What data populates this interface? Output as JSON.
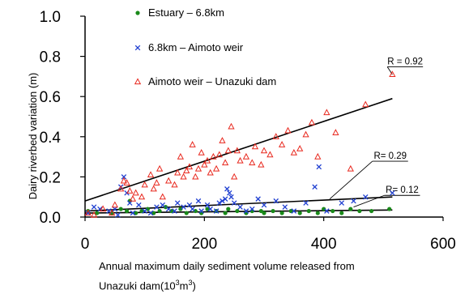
{
  "chart_data": {
    "type": "scatter",
    "title": "",
    "ylabel": "Dairy riverbed variation (m)",
    "xlabel_line1": "Annual maximum daily sediment volume released from",
    "xlabel_line2_base": "Unazuki dam(10",
    "xlabel_line2_sup1": "3",
    "xlabel_line2_mid": "m",
    "xlabel_line2_sup2": "3",
    "xlabel_line2_end": ")",
    "xlim": [
      0,
      600
    ],
    "ylim": [
      0,
      1.0
    ],
    "xticks": [
      "0",
      "200",
      "400",
      "600"
    ],
    "yticks": [
      "0.0",
      "0.2",
      "0.4",
      "0.6",
      "0.8",
      "1.0"
    ],
    "xtick_values": [
      0,
      200,
      400,
      600
    ],
    "ytick_values": [
      0,
      0.2,
      0.4,
      0.6,
      0.8,
      1.0
    ],
    "legend_placement": "top-left",
    "series": [
      {
        "name": "Estuary – 6.8km",
        "marker": "dot",
        "color": "#1a8a1a",
        "points": [
          [
            5,
            0.03
          ],
          [
            20,
            0.02
          ],
          [
            45,
            0.02
          ],
          [
            60,
            0.04
          ],
          [
            70,
            0.03
          ],
          [
            75,
            0.08
          ],
          [
            85,
            0.02
          ],
          [
            95,
            0.03
          ],
          [
            105,
            0.04
          ],
          [
            115,
            0.02
          ],
          [
            125,
            0.03
          ],
          [
            135,
            0.05
          ],
          [
            145,
            0.03
          ],
          [
            160,
            0.04
          ],
          [
            170,
            0.02
          ],
          [
            185,
            0.03
          ],
          [
            195,
            0.02
          ],
          [
            205,
            0.04
          ],
          [
            220,
            0.03
          ],
          [
            235,
            0.02
          ],
          [
            240,
            0.04
          ],
          [
            255,
            0.03
          ],
          [
            270,
            0.02
          ],
          [
            280,
            0.03
          ],
          [
            295,
            0.03
          ],
          [
            300,
            0.02
          ],
          [
            315,
            0.03
          ],
          [
            330,
            0.02
          ],
          [
            345,
            0.03
          ],
          [
            360,
            0.02
          ],
          [
            375,
            0.03
          ],
          [
            390,
            0.02
          ],
          [
            400,
            0.04
          ],
          [
            415,
            0.03
          ],
          [
            430,
            0.02
          ],
          [
            445,
            0.04
          ],
          [
            460,
            0.03
          ],
          [
            480,
            0.03
          ],
          [
            510,
            0.04
          ]
        ]
      },
      {
        "name": "6.8km – Aimoto weir",
        "marker": "x",
        "color": "#1f3fd1",
        "points": [
          [
            5,
            0.02
          ],
          [
            15,
            0.05
          ],
          [
            25,
            0.04
          ],
          [
            40,
            0.03
          ],
          [
            50,
            0.04
          ],
          [
            55,
            0.01
          ],
          [
            60,
            0.15
          ],
          [
            65,
            0.2
          ],
          [
            70,
            0.12
          ],
          [
            75,
            0.07
          ],
          [
            80,
            0.02
          ],
          [
            90,
            0.06
          ],
          [
            100,
            0.03
          ],
          [
            110,
            0.02
          ],
          [
            120,
            0.05
          ],
          [
            130,
            0.06
          ],
          [
            140,
            0.04
          ],
          [
            150,
            0.03
          ],
          [
            155,
            0.07
          ],
          [
            165,
            0.05
          ],
          [
            175,
            0.06
          ],
          [
            180,
            0.04
          ],
          [
            190,
            0.08
          ],
          [
            195,
            0.03
          ],
          [
            205,
            0.06
          ],
          [
            210,
            0.04
          ],
          [
            220,
            0.03
          ],
          [
            225,
            0.07
          ],
          [
            230,
            0.08
          ],
          [
            235,
            0.09
          ],
          [
            238,
            0.14
          ],
          [
            242,
            0.12
          ],
          [
            245,
            0.1
          ],
          [
            250,
            0.07
          ],
          [
            260,
            0.05
          ],
          [
            270,
            0.03
          ],
          [
            280,
            0.04
          ],
          [
            290,
            0.09
          ],
          [
            300,
            0.06
          ],
          [
            320,
            0.08
          ],
          [
            335,
            0.05
          ],
          [
            350,
            0.03
          ],
          [
            370,
            0.07
          ],
          [
            385,
            0.15
          ],
          [
            392,
            0.25
          ],
          [
            405,
            0.03
          ],
          [
            430,
            0.07
          ],
          [
            450,
            0.08
          ],
          [
            470,
            0.1
          ],
          [
            515,
            0.12
          ]
        ]
      },
      {
        "name": "Aimoto weir – Unazuki dam",
        "marker": "triangle",
        "color": "#e8281e",
        "points": [
          [
            5,
            0.02
          ],
          [
            15,
            0.01
          ],
          [
            30,
            0.04
          ],
          [
            45,
            0.02
          ],
          [
            50,
            0.06
          ],
          [
            60,
            0.14
          ],
          [
            65,
            0.18
          ],
          [
            70,
            0.17
          ],
          [
            75,
            0.13
          ],
          [
            80,
            0.09
          ],
          [
            85,
            0.12
          ],
          [
            95,
            0.1
          ],
          [
            100,
            0.16
          ],
          [
            110,
            0.21
          ],
          [
            115,
            0.14
          ],
          [
            120,
            0.17
          ],
          [
            125,
            0.24
          ],
          [
            130,
            0.1
          ],
          [
            140,
            0.18
          ],
          [
            150,
            0.16
          ],
          [
            155,
            0.22
          ],
          [
            160,
            0.3
          ],
          [
            165,
            0.2
          ],
          [
            170,
            0.23
          ],
          [
            175,
            0.25
          ],
          [
            180,
            0.36
          ],
          [
            185,
            0.2
          ],
          [
            190,
            0.24
          ],
          [
            195,
            0.32
          ],
          [
            200,
            0.26
          ],
          [
            205,
            0.28
          ],
          [
            210,
            0.22
          ],
          [
            215,
            0.3
          ],
          [
            220,
            0.24
          ],
          [
            225,
            0.31
          ],
          [
            230,
            0.38
          ],
          [
            235,
            0.27
          ],
          [
            240,
            0.33
          ],
          [
            245,
            0.45
          ],
          [
            250,
            0.2
          ],
          [
            255,
            0.33
          ],
          [
            260,
            0.28
          ],
          [
            270,
            0.3
          ],
          [
            280,
            0.27
          ],
          [
            285,
            0.35
          ],
          [
            295,
            0.26
          ],
          [
            300,
            0.33
          ],
          [
            310,
            0.31
          ],
          [
            320,
            0.4
          ],
          [
            330,
            0.36
          ],
          [
            340,
            0.43
          ],
          [
            350,
            0.32
          ],
          [
            360,
            0.34
          ],
          [
            370,
            0.41
          ],
          [
            380,
            0.47
          ],
          [
            390,
            0.3
          ],
          [
            405,
            0.52
          ],
          [
            420,
            0.42
          ],
          [
            445,
            0.24
          ],
          [
            470,
            0.56
          ],
          [
            515,
            0.71
          ]
        ]
      }
    ],
    "trendlines": [
      {
        "label": "R = 0.92",
        "from": [
          0,
          0.08
        ],
        "to": [
          515,
          0.59
        ],
        "label_anchor": [
          515,
          0.71
        ],
        "label_pos": [
          550,
          0.76
        ]
      },
      {
        "label": "R= 0.29",
        "from": [
          0,
          0.03
        ],
        "to": [
          515,
          0.1
        ],
        "label_anchor": [
          410,
          0.09
        ],
        "label_pos": [
          525,
          0.29
        ]
      },
      {
        "label": "R= 0.12",
        "from": [
          0,
          0.02
        ],
        "to": [
          515,
          0.035
        ],
        "label_anchor": [
          450,
          0.05
        ],
        "label_pos": [
          545,
          0.12
        ]
      }
    ]
  }
}
